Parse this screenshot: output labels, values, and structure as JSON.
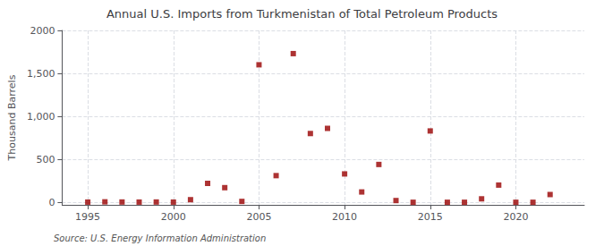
{
  "chart_data": {
    "type": "scatter",
    "title": "Annual U.S. Imports from Turkmenistan of Total Petroleum Products",
    "ylabel": "Thousand Barrels",
    "annotations": [
      "Source: U.S. Energy Information Administration"
    ],
    "x": [
      1995,
      1996,
      1997,
      1998,
      1999,
      2000,
      2001,
      2002,
      2003,
      2004,
      2005,
      2006,
      2007,
      2008,
      2009,
      2010,
      2011,
      2012,
      2013,
      2014,
      2015,
      2016,
      2017,
      2018,
      2019,
      2020,
      2021,
      2022
    ],
    "values": [
      2,
      5,
      3,
      2,
      3,
      2,
      30,
      220,
      170,
      10,
      1600,
      310,
      1730,
      800,
      860,
      330,
      120,
      440,
      20,
      0,
      830,
      0,
      0,
      40,
      200,
      0,
      0,
      90
    ],
    "color": "#990000",
    "marker": "square",
    "xlim": [
      1993.5,
      2024
    ],
    "ylim": [
      -30,
      2000
    ],
    "xticks": [
      1995,
      2000,
      2005,
      2010,
      2015,
      2020
    ],
    "yticks": [
      0,
      500,
      {
        "value": 1000,
        "label": "1,000"
      },
      {
        "value": 1500,
        "label": "1,500"
      },
      2000
    ],
    "grid": true
  }
}
